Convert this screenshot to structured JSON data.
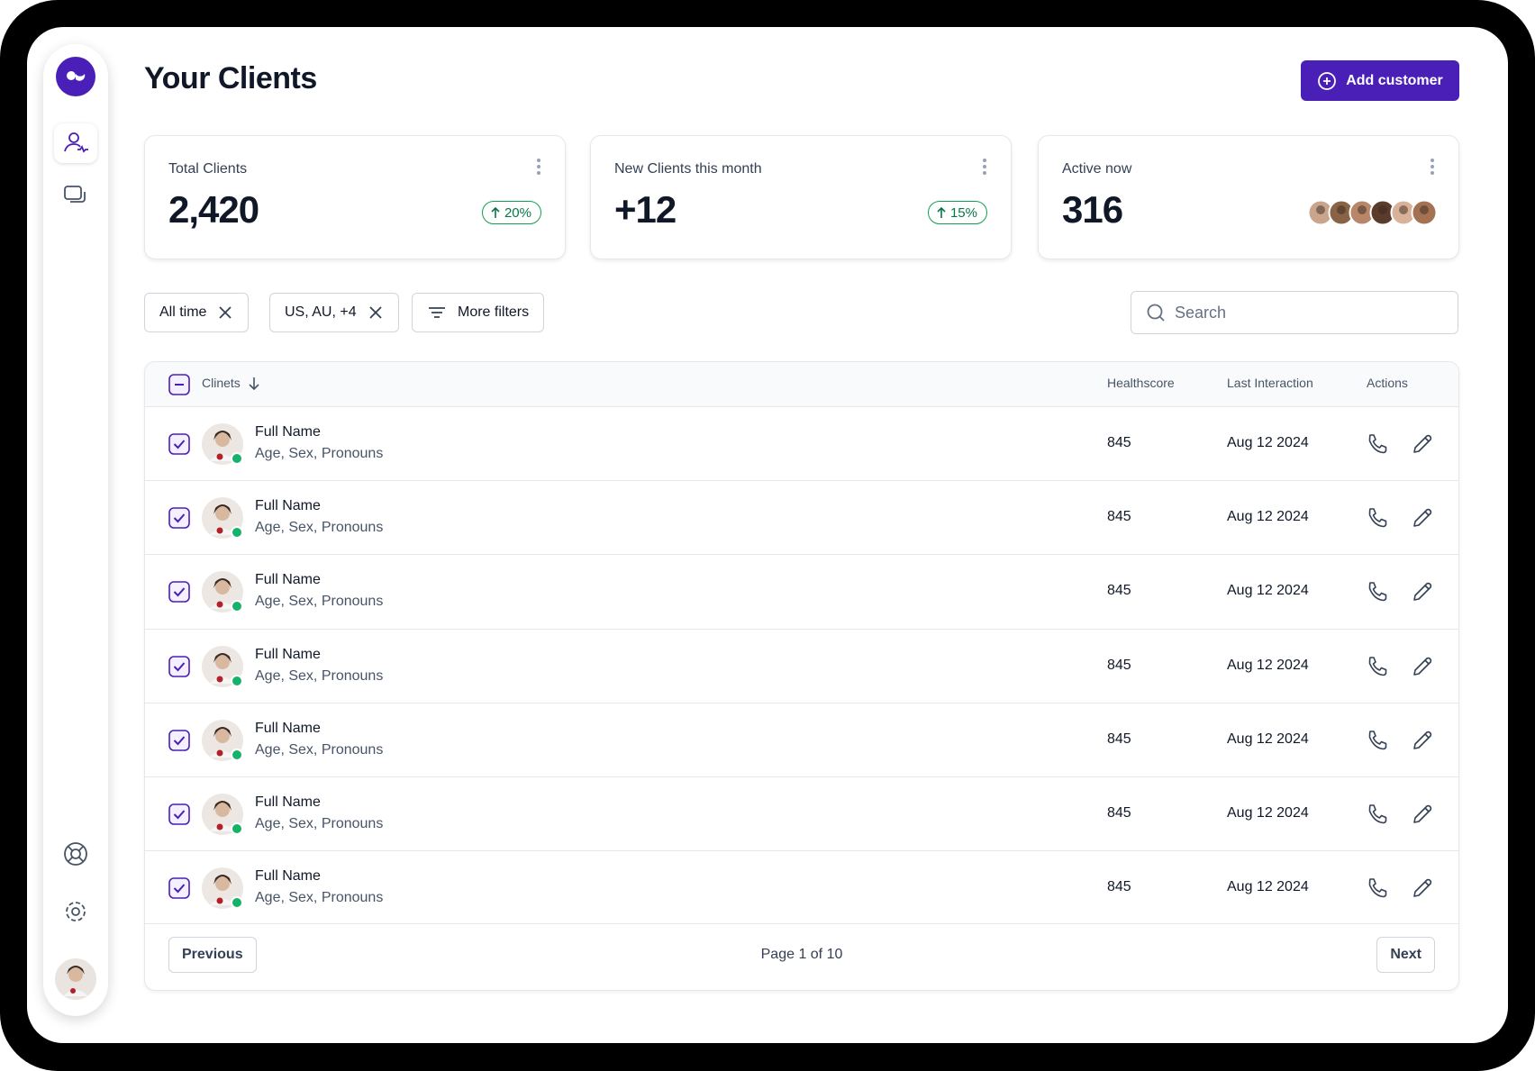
{
  "header": {
    "title": "Your Clients",
    "button": "Add customer"
  },
  "stats": [
    {
      "label": "Total Clients",
      "value": "2,420",
      "change": "20%"
    },
    {
      "label": "New Clients this month",
      "value": "+12",
      "change": "15%"
    },
    {
      "label": "Active now",
      "value": "316"
    }
  ],
  "filters": [
    "All time",
    "US, AU, +4",
    "More filters"
  ],
  "search": {
    "placeholder": "Search"
  },
  "table": {
    "columns": [
      "Clinets",
      "Healthscore",
      "Last Interaction",
      "Actions"
    ],
    "rows": [
      {
        "name": "Full Name",
        "details": "Age, Sex, Pronouns",
        "healthscore": 845,
        "last_interaction": "Aug 12 2024"
      },
      {
        "name": "Full Name",
        "details": "Age, Sex, Pronouns",
        "healthscore": 845,
        "last_interaction": "Aug 12 2024"
      },
      {
        "name": "Full Name",
        "details": "Age, Sex, Pronouns",
        "healthscore": 845,
        "last_interaction": "Aug 12 2024"
      },
      {
        "name": "Full Name",
        "details": "Age, Sex, Pronouns",
        "healthscore": 845,
        "last_interaction": "Aug 12 2024"
      },
      {
        "name": "Full Name",
        "details": "Age, Sex, Pronouns",
        "healthscore": 845,
        "last_interaction": "Aug 12 2024"
      },
      {
        "name": "Full Name",
        "details": "Age, Sex, Pronouns",
        "healthscore": 845,
        "last_interaction": "Aug 12 2024"
      },
      {
        "name": "Full Name",
        "details": "Age, Sex, Pronouns",
        "healthscore": 845,
        "last_interaction": "Aug 12 2024"
      }
    ]
  },
  "pagination": {
    "previous": "Previous",
    "page": "Page 1 of 10",
    "next": "Next"
  }
}
